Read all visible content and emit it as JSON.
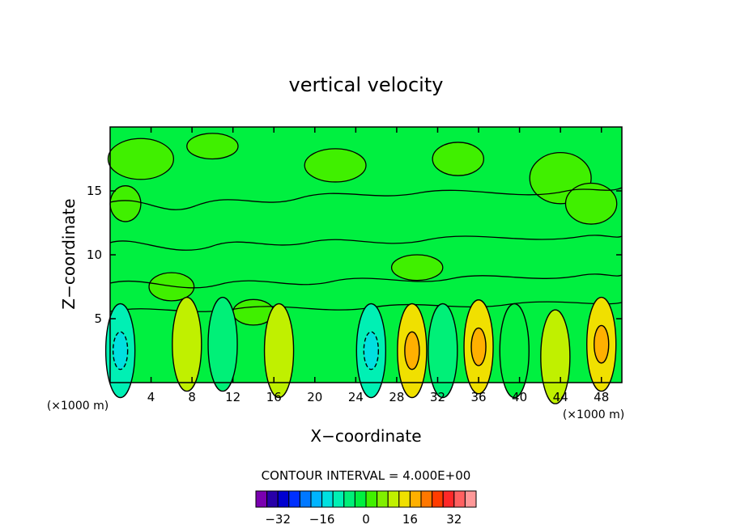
{
  "chart_data": {
    "type": "heatmap",
    "title": "vertical velocity",
    "xlabel": "X−coordinate",
    "ylabel": "Z−coordinate",
    "x_unit_left": "(×1000 m)",
    "x_unit_right": "(×1000 m)",
    "xlim": [
      0,
      50
    ],
    "ylim": [
      0,
      20
    ],
    "x_ticks": [
      4,
      8,
      12,
      16,
      20,
      24,
      28,
      32,
      36,
      40,
      44,
      48
    ],
    "x_tick_labels": [
      "4",
      "8",
      "12",
      "16",
      "20",
      "24",
      "28",
      "32",
      "36",
      "40",
      "44",
      "48"
    ],
    "y_ticks": [
      5,
      10,
      15
    ],
    "y_tick_labels": [
      "5",
      "10",
      "15"
    ],
    "contour_interval_text": "CONTOUR INTERVAL = 4.000E+00",
    "colorbar": {
      "colors": [
        "#7a00b0",
        "#2800a8",
        "#0000d0",
        "#0030ff",
        "#0078ff",
        "#00b4ff",
        "#00e0e0",
        "#00f0b4",
        "#00f078",
        "#00f040",
        "#40f000",
        "#80f000",
        "#c0f000",
        "#f0e000",
        "#ffb000",
        "#ff7800",
        "#ff3c00",
        "#ff2828",
        "#ff6060",
        "#ff9898"
      ],
      "tick_values": [
        -32,
        -16,
        0,
        16,
        32
      ],
      "tick_labels": [
        "−32",
        "−16",
        "0",
        "16",
        "32"
      ]
    },
    "background_level_color": "#00f040",
    "upper_patch_color": "#40f000",
    "features": [
      {
        "x": 1,
        "z": 2.5,
        "value": -12
      },
      {
        "x": 7.5,
        "z": 3,
        "value": 8
      },
      {
        "x": 11,
        "z": 3,
        "value": -8
      },
      {
        "x": 16.5,
        "z": 2.5,
        "value": 8
      },
      {
        "x": 25.5,
        "z": 2.5,
        "value": -12
      },
      {
        "x": 29.5,
        "z": 2.5,
        "value": 12
      },
      {
        "x": 32.5,
        "z": 2.5,
        "value": -8
      },
      {
        "x": 36,
        "z": 2.8,
        "value": 12
      },
      {
        "x": 39.5,
        "z": 2.5,
        "value": -4
      },
      {
        "x": 43.5,
        "z": 1.5,
        "value": 8
      },
      {
        "x": 48,
        "z": 3,
        "value": 12
      }
    ]
  }
}
